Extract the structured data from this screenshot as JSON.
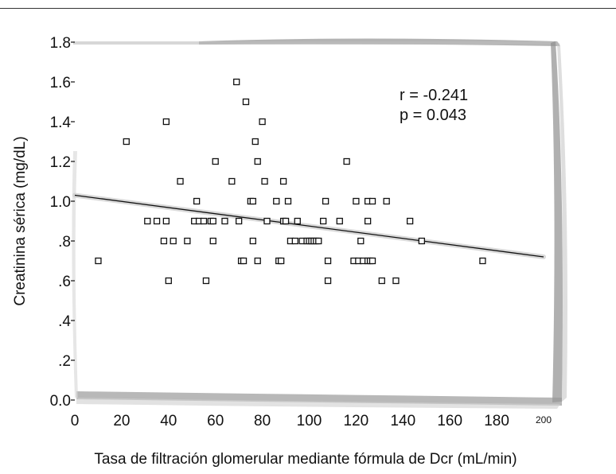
{
  "chart_data": {
    "type": "scatter",
    "xlabel": "Tasa de filtración glomerular mediante fórmula de Dcr (mL/min)",
    "ylabel": "Creatinina sérica (mg/dL)",
    "xlim": [
      0,
      200
    ],
    "ylim": [
      0,
      1.8
    ],
    "x_ticks": [
      "0",
      "20",
      "40",
      "60",
      "80",
      "100",
      "120",
      "140",
      "160",
      "180",
      "200"
    ],
    "y_ticks": [
      "0.0",
      ".2",
      ".4",
      ".6",
      ".8",
      "1.0",
      "1.2",
      "1.4",
      "1.6",
      "1.8"
    ],
    "annotations": [
      "r = -0.241",
      "p = 0.043"
    ],
    "regression_line": {
      "x": [
        0,
        200
      ],
      "y": [
        1.03,
        0.72
      ]
    },
    "points": [
      {
        "x": 10,
        "y": 0.7
      },
      {
        "x": 22,
        "y": 1.3
      },
      {
        "x": 31,
        "y": 0.9
      },
      {
        "x": 35,
        "y": 0.9
      },
      {
        "x": 38,
        "y": 0.8
      },
      {
        "x": 39,
        "y": 1.4
      },
      {
        "x": 39,
        "y": 0.9
      },
      {
        "x": 40,
        "y": 0.6
      },
      {
        "x": 42,
        "y": 0.8
      },
      {
        "x": 45,
        "y": 1.1
      },
      {
        "x": 48,
        "y": 0.8
      },
      {
        "x": 51,
        "y": 0.9
      },
      {
        "x": 52,
        "y": 1.0
      },
      {
        "x": 53,
        "y": 0.9
      },
      {
        "x": 55,
        "y": 0.9
      },
      {
        "x": 56,
        "y": 0.6
      },
      {
        "x": 58,
        "y": 0.9
      },
      {
        "x": 59,
        "y": 0.8
      },
      {
        "x": 59,
        "y": 0.9
      },
      {
        "x": 60,
        "y": 1.2
      },
      {
        "x": 64,
        "y": 0.9
      },
      {
        "x": 67,
        "y": 1.1
      },
      {
        "x": 69,
        "y": 1.6
      },
      {
        "x": 70,
        "y": 0.9
      },
      {
        "x": 71,
        "y": 0.7
      },
      {
        "x": 72,
        "y": 0.7
      },
      {
        "x": 73,
        "y": 1.5
      },
      {
        "x": 75,
        "y": 1.0
      },
      {
        "x": 76,
        "y": 1.0
      },
      {
        "x": 76,
        "y": 0.8
      },
      {
        "x": 77,
        "y": 1.3
      },
      {
        "x": 78,
        "y": 1.2
      },
      {
        "x": 78,
        "y": 0.7
      },
      {
        "x": 80,
        "y": 1.4
      },
      {
        "x": 81,
        "y": 1.1
      },
      {
        "x": 82,
        "y": 0.9
      },
      {
        "x": 86,
        "y": 1.0
      },
      {
        "x": 87,
        "y": 0.7
      },
      {
        "x": 88,
        "y": 0.7
      },
      {
        "x": 89,
        "y": 1.1
      },
      {
        "x": 89,
        "y": 0.9
      },
      {
        "x": 90,
        "y": 0.9
      },
      {
        "x": 91,
        "y": 1.0
      },
      {
        "x": 92,
        "y": 0.8
      },
      {
        "x": 94,
        "y": 0.8
      },
      {
        "x": 95,
        "y": 0.9
      },
      {
        "x": 97,
        "y": 0.8
      },
      {
        "x": 99,
        "y": 0.8
      },
      {
        "x": 100,
        "y": 0.8
      },
      {
        "x": 101,
        "y": 0.8
      },
      {
        "x": 102,
        "y": 0.8
      },
      {
        "x": 103,
        "y": 0.8
      },
      {
        "x": 104,
        "y": 0.8
      },
      {
        "x": 106,
        "y": 0.9
      },
      {
        "x": 107,
        "y": 1.0
      },
      {
        "x": 108,
        "y": 0.7
      },
      {
        "x": 108,
        "y": 0.6
      },
      {
        "x": 113,
        "y": 0.9
      },
      {
        "x": 116,
        "y": 1.2
      },
      {
        "x": 119,
        "y": 0.7
      },
      {
        "x": 120,
        "y": 1.0
      },
      {
        "x": 121,
        "y": 0.7
      },
      {
        "x": 122,
        "y": 0.8
      },
      {
        "x": 123,
        "y": 0.7
      },
      {
        "x": 125,
        "y": 1.0
      },
      {
        "x": 125,
        "y": 0.9
      },
      {
        "x": 125,
        "y": 0.7
      },
      {
        "x": 126,
        "y": 0.7
      },
      {
        "x": 127,
        "y": 0.7
      },
      {
        "x": 127,
        "y": 1.0
      },
      {
        "x": 131,
        "y": 0.6
      },
      {
        "x": 133,
        "y": 1.0
      },
      {
        "x": 137,
        "y": 0.6
      },
      {
        "x": 143,
        "y": 0.9
      },
      {
        "x": 148,
        "y": 0.8
      },
      {
        "x": 174,
        "y": 0.7
      }
    ]
  }
}
